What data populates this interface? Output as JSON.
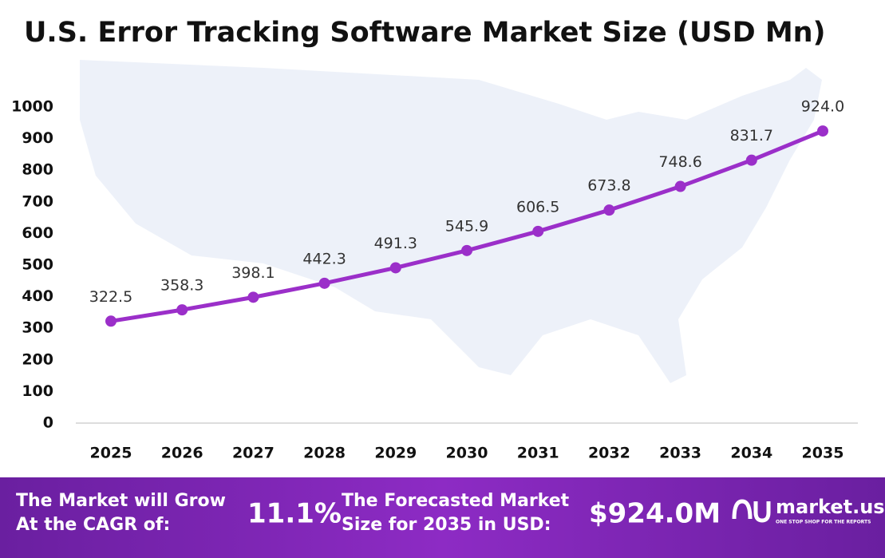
{
  "chart_data": {
    "type": "line",
    "title": "U.S. Error Tracking Software Market Size (USD Mn)",
    "categories": [
      "2025",
      "2026",
      "2027",
      "2028",
      "2029",
      "2030",
      "2031",
      "2032",
      "2033",
      "2034",
      "2035"
    ],
    "values": [
      322.5,
      358.3,
      398.1,
      442.3,
      491.3,
      545.9,
      606.5,
      673.8,
      748.6,
      831.7,
      924.0
    ],
    "value_labels": [
      "322.5",
      "358.3",
      "398.1",
      "442.3",
      "491.3",
      "545.9",
      "606.5",
      "673.8",
      "748.6",
      "831.7",
      "924.0"
    ],
    "color": "#9b2fc9",
    "ylim": [
      0,
      1000
    ],
    "yticks": [
      0,
      100,
      200,
      300,
      400,
      500,
      600,
      700,
      800,
      900,
      1000
    ],
    "grid": false
  },
  "footer": {
    "cagr_text": [
      "The Market will Grow",
      "At the CAGR of:"
    ],
    "cagr_value": "11.1%",
    "forecast_text": [
      "The Forecasted Market",
      "Size for 2035 in USD:"
    ],
    "forecast_value": "$924.0M",
    "brand": "market.us",
    "tagline": "ONE STOP SHOP FOR THE REPORTS"
  }
}
